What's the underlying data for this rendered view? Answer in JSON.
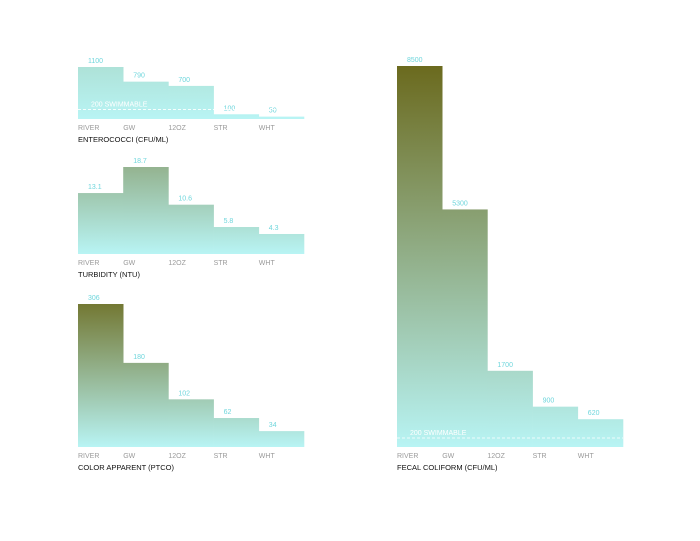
{
  "colors": {
    "bar_top": "#6b6a1e",
    "bar_bottom": "#b8f4f4",
    "label": "#6fd6dc",
    "category": "#9a9a9a",
    "title": "#111111"
  },
  "chart_data": [
    {
      "id": "enterococci",
      "type": "bar",
      "title": "ENTEROCOCCI (CFU/ML)",
      "categories": [
        "RIVER",
        "GW",
        "12OZ",
        "STR",
        "WHT"
      ],
      "values": [
        1100,
        790,
        700,
        100,
        50
      ],
      "value_labels": [
        "1100",
        "790",
        "700",
        "100",
        "50"
      ],
      "ylim": [
        0,
        1100
      ],
      "reference_line": {
        "value": 200,
        "label": "200 SWIMMABLE"
      },
      "gradient_max": 8500
    },
    {
      "id": "turbidity",
      "type": "bar",
      "title": "TURBIDITY (NTU)",
      "categories": [
        "RIVER",
        "GW",
        "12OZ",
        "STR",
        "WHT"
      ],
      "values": [
        13.1,
        18.7,
        10.6,
        5.8,
        4.3
      ],
      "value_labels": [
        "13.1",
        "18.7",
        "10.6",
        "5.8",
        "4.3"
      ],
      "ylim": [
        0,
        18.7
      ],
      "gradient_max": 40
    },
    {
      "id": "color",
      "type": "bar",
      "title": "COLOR APPARENT (PTCO)",
      "categories": [
        "RIVER",
        "GW",
        "12OZ",
        "STR",
        "WHT"
      ],
      "values": [
        306,
        180,
        102,
        62,
        34
      ],
      "value_labels": [
        "306",
        "180",
        "102",
        "62",
        "34"
      ],
      "ylim": [
        0,
        306
      ],
      "gradient_max": 340
    },
    {
      "id": "fecal",
      "type": "bar",
      "title": "FECAL COLIFORM (CFU/ML)",
      "categories": [
        "RIVER",
        "GW",
        "12OZ",
        "STR",
        "WHT"
      ],
      "values": [
        8500,
        5300,
        1700,
        900,
        620
      ],
      "value_labels": [
        "8500",
        "5300",
        "1700",
        "900",
        "620"
      ],
      "ylim": [
        0,
        8500
      ],
      "reference_line": {
        "value": 200,
        "label": "200 SWIMMABLE"
      },
      "gradient_max": 8500
    }
  ]
}
